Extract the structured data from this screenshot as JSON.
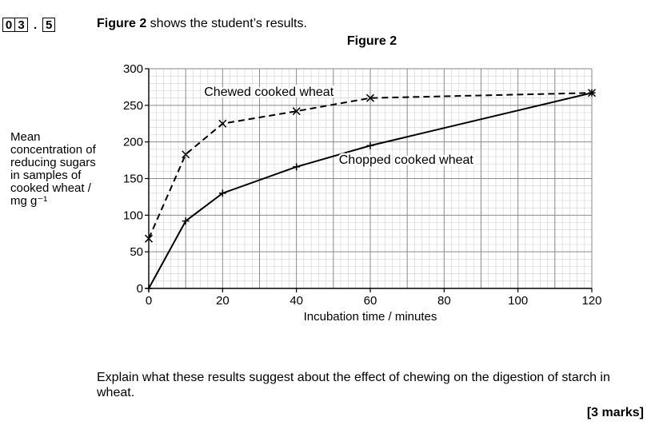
{
  "question": {
    "digits": [
      "0",
      "3"
    ],
    "sep": ".",
    "part": "5",
    "intro_bold": "Figure 2",
    "intro_text": " shows the student’s results.",
    "prompt": "Explain what these results suggest about the effect of chewing on the digestion of starch in wheat.",
    "marks": "[3 marks]"
  },
  "figure_title": "Figure 2",
  "chart_data": {
    "type": "line",
    "ylabel_lines": [
      "Mean",
      "concentration of",
      "reducing sugars",
      "in samples of",
      "cooked wheat /",
      "mg g⁻¹"
    ],
    "xlabel": "Incubation time / minutes",
    "xlim": [
      0,
      120
    ],
    "ylim": [
      0,
      300
    ],
    "xticks": [
      0,
      20,
      40,
      60,
      80,
      100,
      120
    ],
    "yticks": [
      0,
      50,
      100,
      150,
      200,
      250,
      300
    ],
    "grid": true,
    "series": [
      {
        "name": "Chewed cooked wheat",
        "style": "dashed",
        "marker": "x",
        "x": [
          0,
          10,
          20,
          40,
          60,
          120
        ],
        "y": [
          68,
          183,
          225,
          242,
          260,
          267
        ]
      },
      {
        "name": "Chopped cooked wheat",
        "style": "solid",
        "marker": "+",
        "x": [
          0,
          10,
          20,
          40,
          60,
          120
        ],
        "y": [
          0,
          92,
          130,
          166,
          195,
          267
        ]
      }
    ]
  }
}
